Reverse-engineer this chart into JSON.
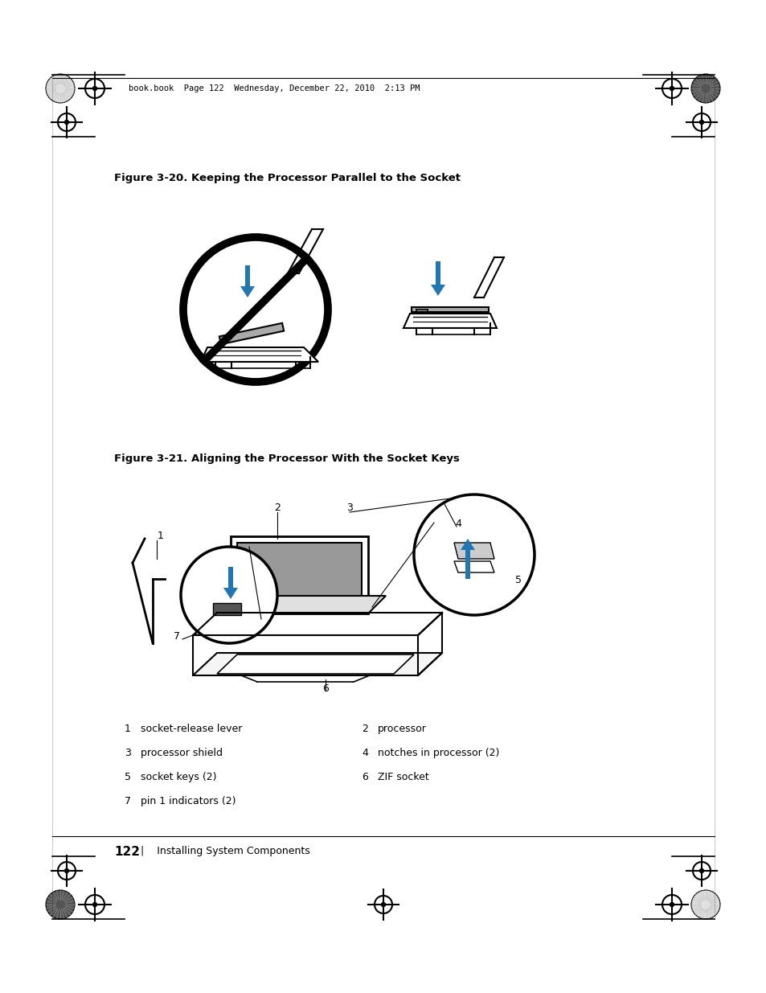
{
  "page_bg": "#ffffff",
  "header_text": "book.book  Page 122  Wednesday, December 22, 2010  2:13 PM",
  "fig20_caption": "Figure 3-20.",
  "fig20_title": "Keeping the Processor Parallel to the Socket",
  "fig21_caption": "Figure 3-21.",
  "fig21_title": "Aligning the Processor With the Socket Keys",
  "labels": [
    [
      "1",
      "socket-release lever",
      "2",
      "processor"
    ],
    [
      "3",
      "processor shield",
      "4",
      "notches in processor (2)"
    ],
    [
      "5",
      "socket keys (2)",
      "6",
      "ZIF socket"
    ],
    [
      "7",
      "pin 1 indicators (2)",
      "",
      ""
    ]
  ],
  "footer_num": "122",
  "footer_text": "|    Installing System Components",
  "arrow_color": "#1F78B4",
  "black": "#000000",
  "gray": "#888888",
  "lightgray": "#cccccc"
}
